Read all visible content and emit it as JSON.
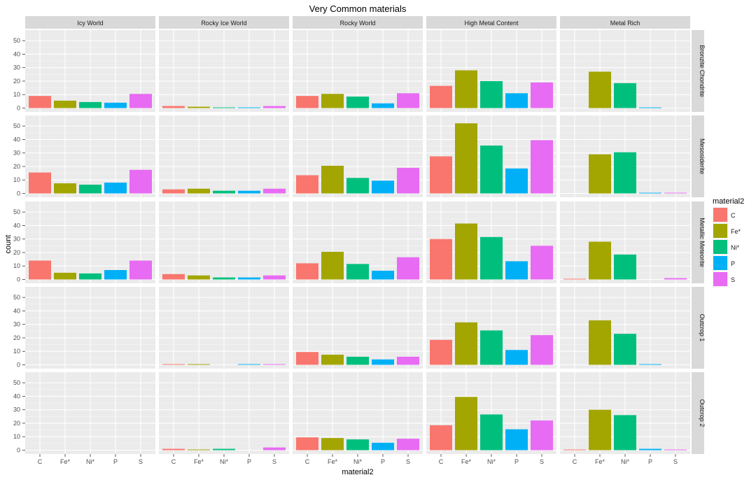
{
  "chart_data": {
    "type": "bar",
    "title": "Very Common materials",
    "xlabel": "material2",
    "ylabel": "count",
    "categories": [
      "C",
      "Fe*",
      "Ni*",
      "P",
      "S"
    ],
    "ylim": [
      0,
      55
    ],
    "yticks": [
      0,
      10,
      20,
      30,
      40,
      50
    ],
    "grid": true,
    "legend": {
      "title": "material2",
      "position": "right",
      "entries": [
        {
          "label": "C",
          "color": "#F8766D"
        },
        {
          "label": "Fe*",
          "color": "#A3A500"
        },
        {
          "label": "Ni*",
          "color": "#00BF7D"
        },
        {
          "label": "P",
          "color": "#00B0F6"
        },
        {
          "label": "S",
          "color": "#E76BF3"
        }
      ]
    },
    "facet_columns": [
      "Icy World",
      "Rocky Ice World",
      "Rocky World",
      "High Metal Content",
      "Metal Rich"
    ],
    "facet_rows": [
      "Bronzite Chondrite",
      "Mesosiderite",
      "Metallic Meteorite",
      "Outcrop 1",
      "Outcrop 2"
    ],
    "panels": [
      [
        [
          9,
          5.5,
          4.5,
          4,
          10.5
        ],
        [
          1.5,
          1,
          0.5,
          0.5,
          1.5
        ],
        [
          9,
          10.5,
          8.5,
          3.5,
          11
        ],
        [
          16.5,
          28,
          20,
          11,
          19
        ],
        [
          0,
          27,
          18.5,
          0.5,
          0
        ]
      ],
      [
        [
          15.5,
          7.5,
          6.5,
          8,
          17.5
        ],
        [
          3,
          3.5,
          2,
          2,
          3.5
        ],
        [
          13.5,
          20.5,
          11.5,
          9.5,
          19
        ],
        [
          27.5,
          52,
          35.5,
          18.5,
          39.5
        ],
        [
          0,
          29,
          30.5,
          0.5,
          0.5
        ]
      ],
      [
        [
          14,
          5,
          4.5,
          7,
          14
        ],
        [
          4,
          3,
          1.5,
          1.5,
          3
        ],
        [
          12,
          20.5,
          11.5,
          6.5,
          16.5
        ],
        [
          30,
          41.5,
          31.5,
          13.5,
          25
        ],
        [
          0.5,
          28,
          18.5,
          0,
          1
        ]
      ],
      [
        [
          0,
          0,
          0,
          0,
          0
        ],
        [
          0.5,
          0.5,
          0,
          0.5,
          0.5
        ],
        [
          9.5,
          7.5,
          6,
          4,
          6
        ],
        [
          18.5,
          31.5,
          25.5,
          11,
          22
        ],
        [
          0,
          33,
          23,
          0.5,
          0
        ]
      ],
      [
        [
          0,
          0,
          0,
          0,
          0
        ],
        [
          1,
          0.5,
          1,
          0,
          2
        ],
        [
          9.5,
          9,
          8,
          5.5,
          8.5
        ],
        [
          18.5,
          39.5,
          26.5,
          15.5,
          22
        ],
        [
          0.5,
          30,
          26,
          1,
          0.5
        ]
      ]
    ]
  }
}
